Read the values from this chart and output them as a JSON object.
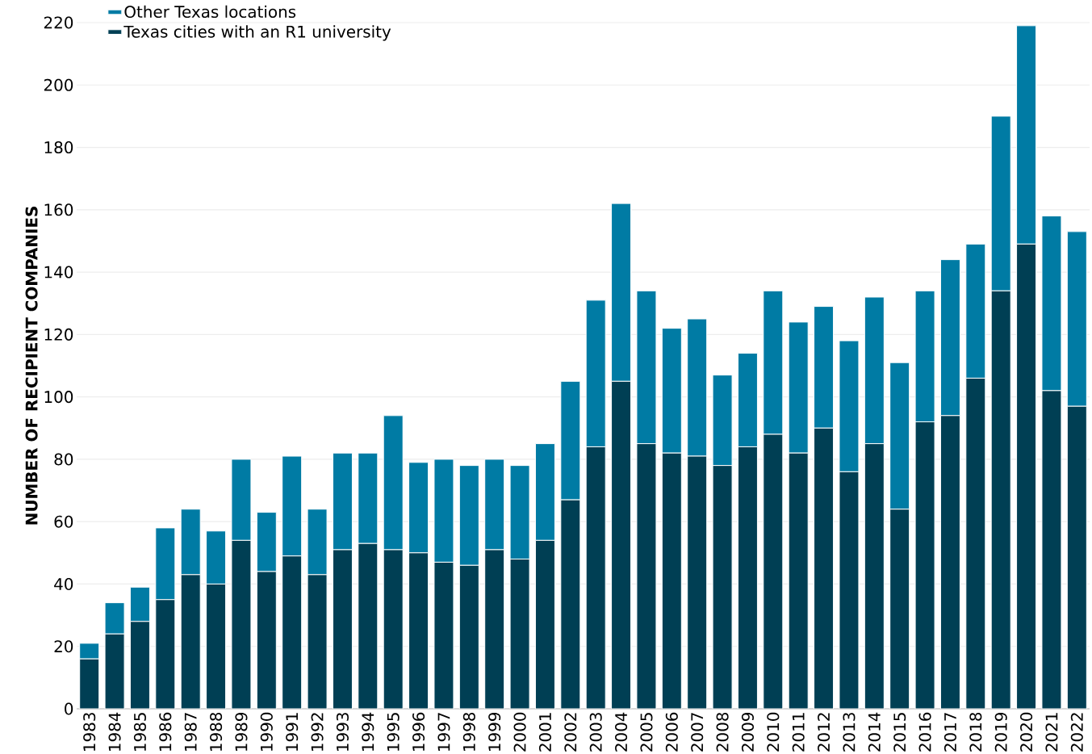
{
  "chart_data": {
    "type": "bar",
    "stacked": true,
    "ylabel": "NUMBER OF RECIPIENT COMPANIES",
    "categories": [
      "1983",
      "1984",
      "1985",
      "1986",
      "1987",
      "1988",
      "1989",
      "1990",
      "1991",
      "1992",
      "1993",
      "1994",
      "1995",
      "1996",
      "1997",
      "1998",
      "1999",
      "2000",
      "2001",
      "2002",
      "2003",
      "2004",
      "2005",
      "2006",
      "2007",
      "2008",
      "2009",
      "2010",
      "2011",
      "2012",
      "2013",
      "2014",
      "2015",
      "2016",
      "2017",
      "2018",
      "2019",
      "2020",
      "2021",
      "2022"
    ],
    "series": [
      {
        "name": "Texas cities with an R1 university",
        "color": "#003f54",
        "values": [
          16,
          24,
          28,
          35,
          43,
          40,
          54,
          44,
          49,
          43,
          51,
          53,
          51,
          50,
          47,
          46,
          51,
          48,
          54,
          67,
          84,
          105,
          85,
          82,
          81,
          78,
          84,
          88,
          82,
          90,
          76,
          85,
          64,
          92,
          94,
          106,
          134,
          149,
          102,
          97
        ]
      },
      {
        "name": "Other Texas locations",
        "color": "#007ba4",
        "values": [
          5,
          10,
          11,
          23,
          21,
          17,
          26,
          19,
          32,
          21,
          31,
          29,
          43,
          29,
          33,
          32,
          29,
          30,
          31,
          38,
          47,
          57,
          49,
          40,
          44,
          29,
          30,
          46,
          42,
          39,
          42,
          47,
          47,
          42,
          50,
          43,
          56,
          70,
          56,
          56
        ]
      }
    ],
    "ylim": [
      0,
      220
    ],
    "yticks": [
      0,
      20,
      40,
      60,
      80,
      100,
      120,
      140,
      160,
      180,
      200,
      220
    ],
    "grid": "y",
    "legend": "top left"
  }
}
